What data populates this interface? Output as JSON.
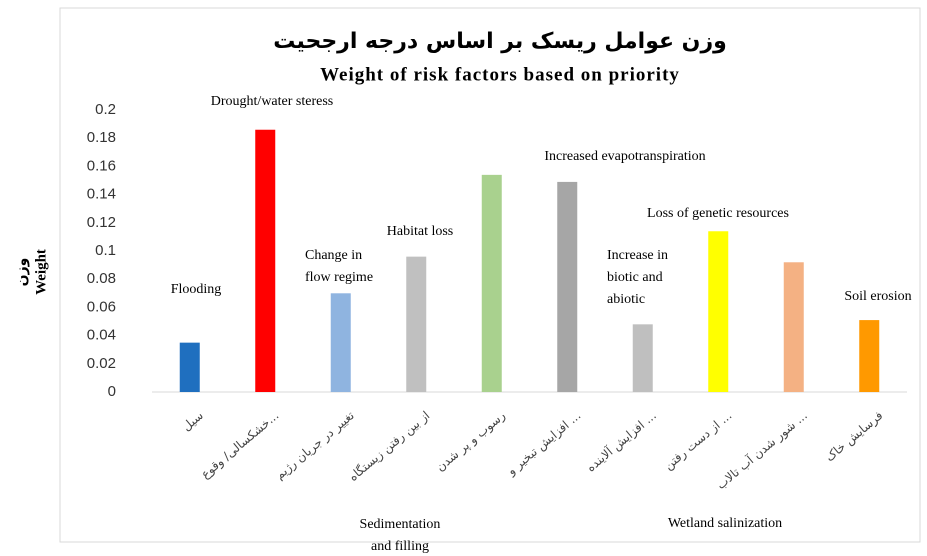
{
  "chart_data": {
    "type": "bar",
    "title": "وزن عوامل ریسک بر اساس درجه ارجحیت",
    "subtitle": "Weight of risk factors based on priority",
    "y_label": [
      "وزن",
      "Weight"
    ],
    "categories": [
      "سیل",
      "خشکسالی/ وقوع...",
      "تغییر در جریان رژیم",
      "از بین رفتن زیستگاه",
      "رسوب و پر شدن",
      "افزایش تبخیر و ...",
      "افزایش آلاینده ...",
      "از دست رفتن ...",
      "شور شدن آب تالاب ...",
      "فرسایش خاک"
    ],
    "bar_labels": [
      [
        "Flooding"
      ],
      [
        "Drought/water steress"
      ],
      [
        "Change in",
        "flow regime"
      ],
      [
        "Habitat loss"
      ],
      [
        "Sedimentation",
        "and filling"
      ],
      [
        "Increased evapotranspiration"
      ],
      [
        "Increase in",
        "biotic and",
        "abiotic"
      ],
      [
        "Loss of genetic resources"
      ],
      [
        "Wetland salinization"
      ],
      [
        "Soil erosion"
      ]
    ],
    "values": [
      0.035,
      0.186,
      0.07,
      0.096,
      0.154,
      0.149,
      0.048,
      0.114,
      0.092,
      0.051
    ],
    "colors": [
      "#1f6fbf",
      "#ff0000",
      "#8fb4e0",
      "#c0c0c0",
      "#a9d18e",
      "#a6a6a6",
      "#bfbfbf",
      "#ffff00",
      "#f4b183",
      "#ff9900"
    ],
    "ylim": [
      0,
      0.2
    ],
    "yticks": [
      0,
      0.02,
      0.04,
      0.06,
      0.08,
      0.1,
      0.12,
      0.14,
      0.16,
      0.18,
      0.2
    ],
    "grid": false
  }
}
